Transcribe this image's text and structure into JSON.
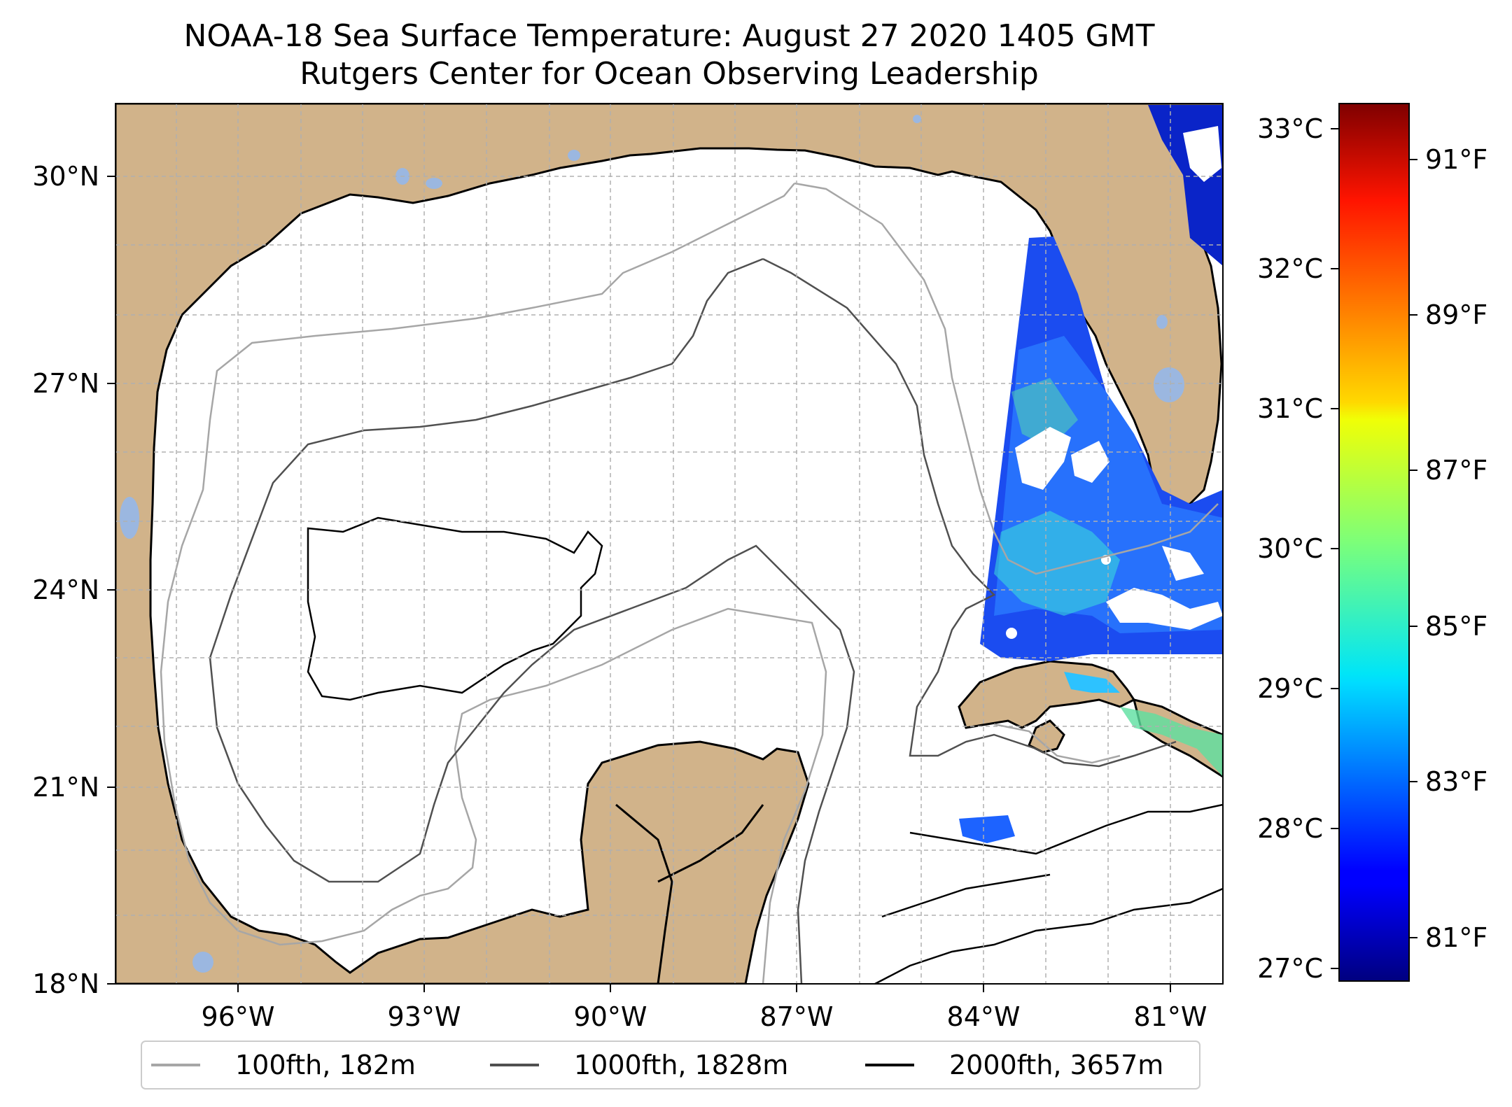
{
  "title": {
    "line1": "NOAA-18 Sea Surface Temperature: August 27 2020 1405 GMT",
    "line2": "Rutgers Center for Ocean Observing Leadership"
  },
  "map": {
    "lat_ticks": [
      "30°N",
      "27°N",
      "24°N",
      "21°N",
      "18°N"
    ],
    "lon_ticks": [
      "96°W",
      "93°W",
      "90°W",
      "87°W",
      "84°W",
      "81°W"
    ],
    "colors": {
      "land": "#d1b38a",
      "ocean": "#ffffff",
      "lakes": "#9bb7e0",
      "coast": "#000000",
      "grid": "#b0b0b0"
    }
  },
  "legend": {
    "items": [
      {
        "label": "100fth, 182m",
        "color": "#a6a6a6"
      },
      {
        "label": "1000fth, 1828m",
        "color": "#505050"
      },
      {
        "label": "2000fth, 3657m",
        "color": "#000000"
      }
    ]
  },
  "colorbar": {
    "celsius_ticks": [
      "33°C",
      "32°C",
      "31°C",
      "30°C",
      "29°C",
      "28°C",
      "27°C"
    ],
    "fahrenheit_ticks": [
      "91°F",
      "89°F",
      "87°F",
      "85°F",
      "83°F",
      "81°F"
    ],
    "colormap": "jet"
  }
}
